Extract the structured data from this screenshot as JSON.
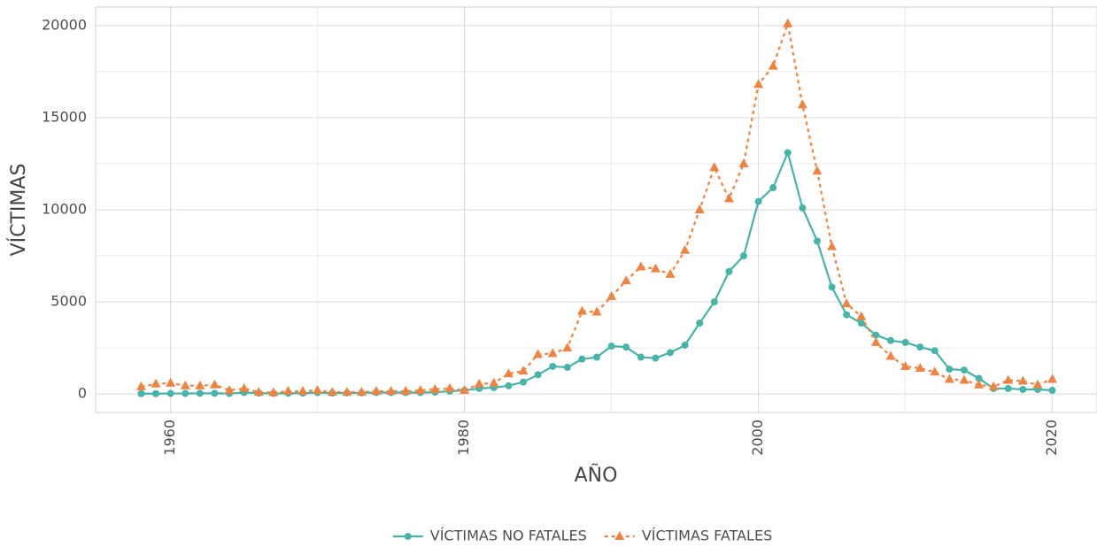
{
  "chart_data": {
    "type": "line",
    "xlabel": "AÑO",
    "ylabel": "VÍCTIMAS",
    "x": [
      1958,
      1959,
      1960,
      1961,
      1962,
      1963,
      1964,
      1965,
      1966,
      1967,
      1968,
      1969,
      1970,
      1971,
      1972,
      1973,
      1974,
      1975,
      1976,
      1977,
      1978,
      1979,
      1980,
      1981,
      1982,
      1983,
      1984,
      1985,
      1986,
      1987,
      1988,
      1989,
      1990,
      1991,
      1992,
      1993,
      1994,
      1995,
      1996,
      1997,
      1998,
      1999,
      2000,
      2001,
      2002,
      2003,
      2004,
      2005,
      2006,
      2007,
      2008,
      2009,
      2010,
      2011,
      2012,
      2013,
      2014,
      2015,
      2016,
      2017,
      2018,
      2019,
      2020
    ],
    "series": [
      {
        "name": "VÍCTIMAS NO FATALES",
        "color": "#48b3a8",
        "marker": "circle",
        "dashed": false,
        "values": [
          20,
          20,
          30,
          30,
          40,
          40,
          30,
          80,
          50,
          30,
          40,
          50,
          80,
          50,
          60,
          60,
          80,
          80,
          80,
          80,
          100,
          150,
          200,
          300,
          350,
          450,
          650,
          1050,
          1500,
          1450,
          1900,
          2000,
          2600,
          2550,
          2000,
          1950,
          2250,
          2650,
          3850,
          5000,
          6650,
          7500,
          10450,
          11200,
          13100,
          10100,
          8300,
          5800,
          4300,
          3850,
          3200,
          2900,
          2800,
          2550,
          2350,
          1350,
          1300,
          850,
          300,
          300,
          250,
          250,
          200
        ]
      },
      {
        "name": "VÍCTIMAS FATALES",
        "color": "#ee8443",
        "marker": "triangle",
        "dashed": true,
        "values": [
          400,
          550,
          600,
          450,
          450,
          500,
          200,
          300,
          100,
          80,
          150,
          150,
          200,
          100,
          100,
          100,
          150,
          150,
          150,
          200,
          250,
          300,
          200,
          550,
          600,
          1100,
          1250,
          2150,
          2200,
          2500,
          4500,
          4450,
          5300,
          6150,
          6900,
          6800,
          6500,
          7800,
          10000,
          12300,
          10600,
          12500,
          16800,
          17800,
          20100,
          15700,
          12100,
          8000,
          4900,
          4200,
          2800,
          2050,
          1500,
          1400,
          1200,
          800,
          750,
          500,
          400,
          750,
          700,
          500,
          800
        ]
      }
    ],
    "xlim": [
      1954.9,
      2023.1
    ],
    "xticks": [
      1960,
      1980,
      2000,
      2020
    ],
    "ylim": [
      -1000,
      21000
    ],
    "yticks": [
      0,
      5000,
      10000,
      15000,
      20000
    ],
    "grid": true,
    "legend": "bottom"
  }
}
